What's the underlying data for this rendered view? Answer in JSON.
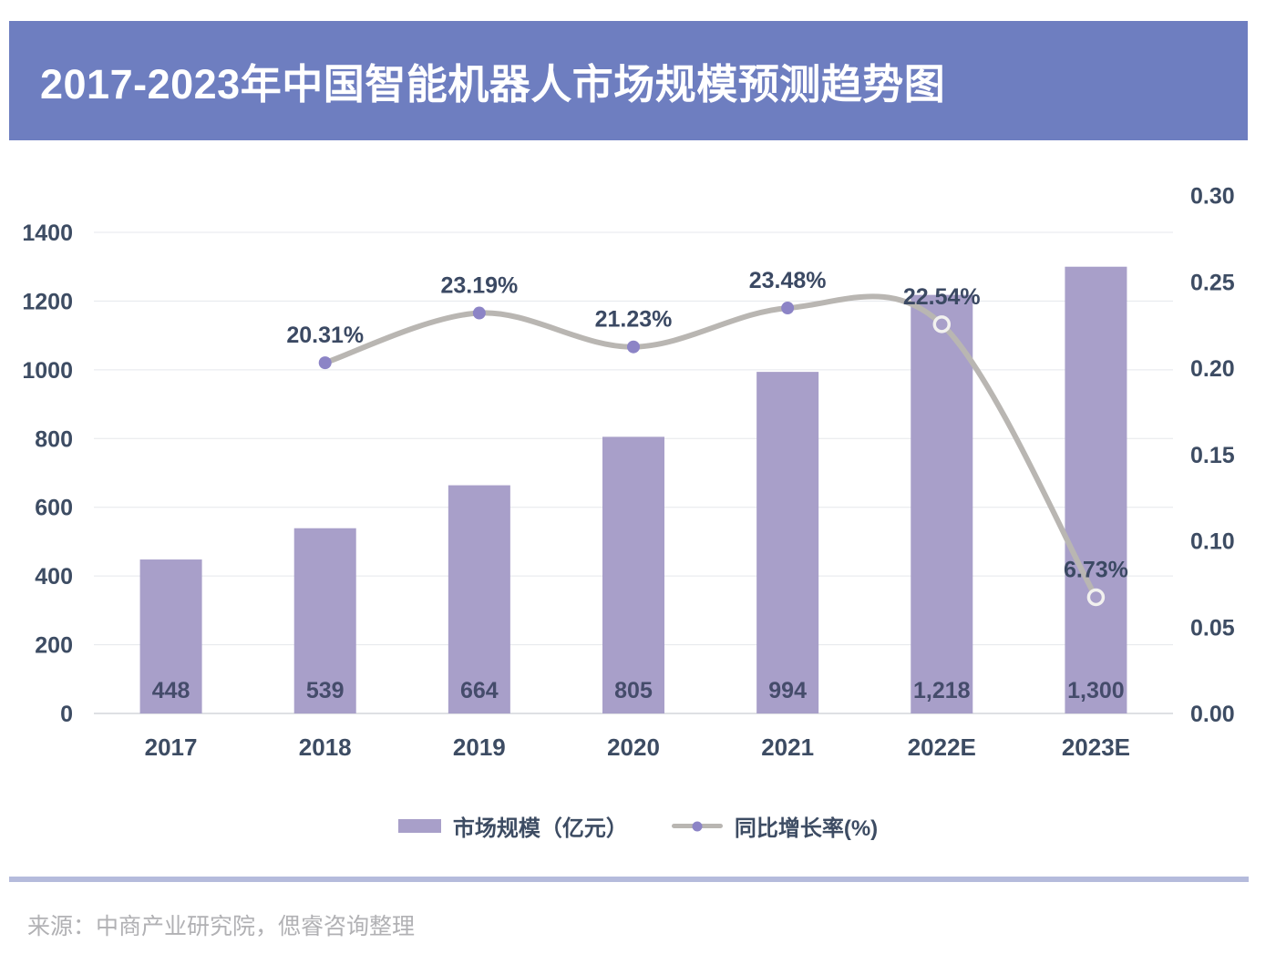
{
  "header": {
    "title": "2017-2023年中国智能机器人市场规模预测趋势图",
    "background": "#6e7ec0"
  },
  "chart_data": {
    "type": "combo",
    "title": "2017-2023年中国智能机器人市场规模预测趋势图",
    "categories": [
      "2017",
      "2018",
      "2019",
      "2020",
      "2021",
      "2022E",
      "2023E"
    ],
    "series": [
      {
        "name": "市场规模（亿元）",
        "type": "bar",
        "axis": "left",
        "values": [
          448,
          539,
          664,
          805,
          994,
          1218,
          1300
        ],
        "labels": [
          "448",
          "539",
          "664",
          "805",
          "994",
          "1,218",
          "1,300"
        ],
        "color": "#a89fc9"
      },
      {
        "name": "同比增长率(%)",
        "type": "line",
        "axis": "right",
        "values": [
          null,
          0.2031,
          0.2319,
          0.2123,
          0.2348,
          0.2254,
          0.0673
        ],
        "labels": [
          "",
          "20.31%",
          "23.19%",
          "21.23%",
          "23.48%",
          "22.54%",
          "6.73%"
        ],
        "color": "#b9b6b2",
        "marker_color": "#8c84c6",
        "hollow_marker_ring": "#f2f1ef",
        "hollow_from_index": 5
      }
    ],
    "left_axis": {
      "min": 0,
      "max": 1400,
      "step": 200,
      "ticks": [
        "0",
        "200",
        "400",
        "600",
        "800",
        "1000",
        "1200",
        "1400"
      ]
    },
    "right_axis": {
      "min": 0,
      "max": 0.3,
      "step": 0.05,
      "ticks": [
        "0.00",
        "0.05",
        "0.10",
        "0.15",
        "0.20",
        "0.25",
        "0.30"
      ]
    },
    "grid": true,
    "legend_position": "bottom"
  },
  "legend": {
    "items": [
      {
        "label": "市场规模（亿元）",
        "swatch": "bar",
        "color": "#a89fc9"
      },
      {
        "label": "同比增长率(%)",
        "swatch": "line-dot",
        "line_color": "#b9b6b2",
        "dot_color": "#8c84c6"
      }
    ]
  },
  "footer": {
    "divider_color": "#b5bbdc",
    "source": "来源：中商产业研究院，偲睿咨询整理"
  },
  "colors": {
    "text_dark": "#3d4c63",
    "gridline": "#e5e7ec",
    "baseline": "#d3d6dc",
    "source_text": "#b1b1b4"
  }
}
